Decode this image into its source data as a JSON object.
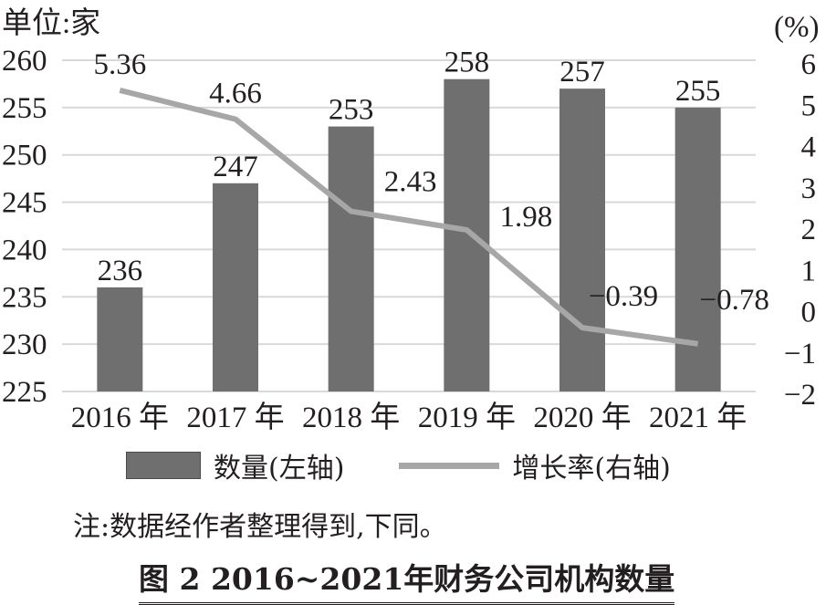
{
  "chart_data": {
    "type": "bar+line",
    "title": "图 2  2016~2021年财务公司机构数量",
    "categories": [
      "2016 年",
      "2017 年",
      "2018 年",
      "2019 年",
      "2020 年",
      "2021 年"
    ],
    "series": [
      {
        "name": "数量(左轴)",
        "type": "bar",
        "axis": "left",
        "color": "#6f6f70",
        "values": [
          236,
          247,
          253,
          258,
          257,
          255
        ],
        "labels": [
          "236",
          "247",
          "253",
          "258",
          "257",
          "255"
        ]
      },
      {
        "name": "增长率(右轴)",
        "type": "line",
        "axis": "right",
        "color": "#a7a7a8",
        "values": [
          5.36,
          4.66,
          2.43,
          1.98,
          -0.39,
          -0.78
        ],
        "labels": [
          "5.36",
          "4.66",
          "2.43",
          "1.98",
          "−0.39",
          "−0.78"
        ]
      }
    ],
    "left_axis": {
      "label": "单位:家",
      "ylim": [
        225,
        260
      ],
      "ticks": [
        "260",
        "255",
        "250",
        "245",
        "240",
        "235",
        "230",
        "225"
      ]
    },
    "right_axis": {
      "label": "(%)",
      "ylim": [
        -2,
        6
      ],
      "ticks": [
        "6",
        "5",
        "4",
        "3",
        "2",
        "1",
        "0",
        "−1",
        "−2"
      ]
    },
    "grid": true,
    "legend_position": "bottom"
  },
  "legend": {
    "bar_label": "数量(左轴)",
    "line_label": "增长率(右轴)"
  },
  "note": "注:数据经作者整理得到,下同。",
  "caption": "图 2  2016~2021年财务公司机构数量"
}
